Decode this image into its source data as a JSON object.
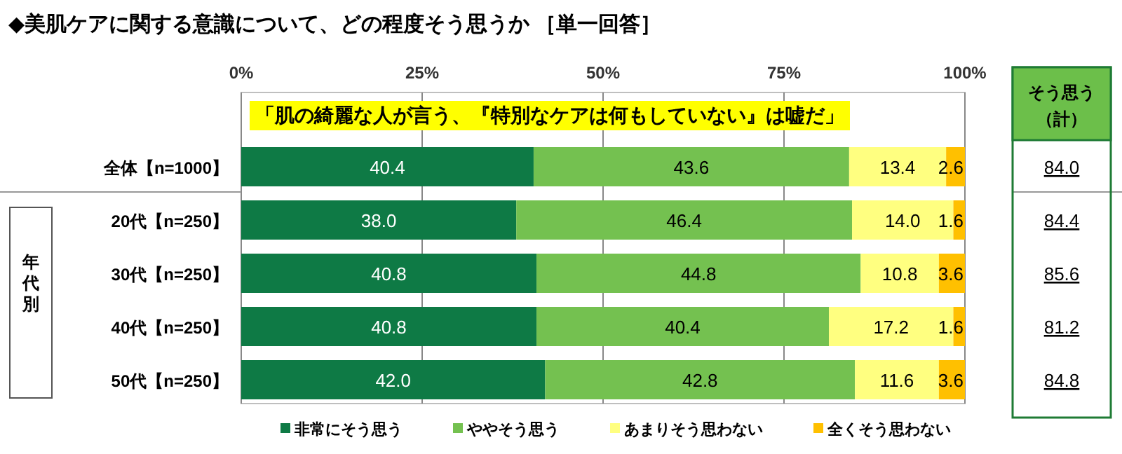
{
  "chart_data": {
    "type": "bar",
    "orientation": "horizontal",
    "stacked": true,
    "title": "◆美肌ケアに関する意識について、どの程度そう思うか ［単一回答］",
    "subtitle": "「肌の綺麗な人が言う、『特別なケアは何もしていない』は嘘だ」",
    "categories": [
      "全体【n=1000】",
      "20代【n=250】",
      "30代【n=250】",
      "40代【n=250】",
      "50代【n=250】"
    ],
    "series": [
      {
        "name": "非常にそう思う",
        "color": "#0e7a45",
        "values": [
          40.4,
          38.0,
          40.8,
          40.8,
          42.0
        ],
        "value_labels": [
          "40.4",
          "38.0",
          "40.8",
          "40.8",
          "42.0"
        ]
      },
      {
        "name": "ややそう思う",
        "color": "#74c150",
        "values": [
          43.6,
          46.4,
          44.8,
          40.4,
          42.8
        ],
        "value_labels": [
          "43.6",
          "46.4",
          "44.8",
          "40.4",
          "42.8"
        ]
      },
      {
        "name": "あまりそう思わない",
        "color": "#ffff80",
        "values": [
          13.4,
          14.0,
          10.8,
          17.2,
          11.6
        ],
        "value_labels": [
          "13.4",
          "14.0",
          "10.8",
          "17.2",
          "11.6"
        ]
      },
      {
        "name": "全くそう思わない",
        "color": "#ffc000",
        "values": [
          2.6,
          1.6,
          3.6,
          1.6,
          3.6
        ],
        "value_labels": [
          "2.6",
          "1.6",
          "3.6",
          "1.6",
          "3.6"
        ]
      }
    ],
    "xlim": [
      0,
      100
    ],
    "xticks": [
      {
        "value": 0,
        "label": "0%"
      },
      {
        "value": 25,
        "label": "25%"
      },
      {
        "value": 50,
        "label": "50%"
      },
      {
        "value": 75,
        "label": "75%"
      },
      {
        "value": 100,
        "label": "100%"
      }
    ],
    "grid": "x",
    "legend": "bottom",
    "annotations": [
      "そう思う（計）",
      "年代別",
      "84.0",
      "84.4",
      "85.6",
      "81.2",
      "84.8"
    ]
  }
}
